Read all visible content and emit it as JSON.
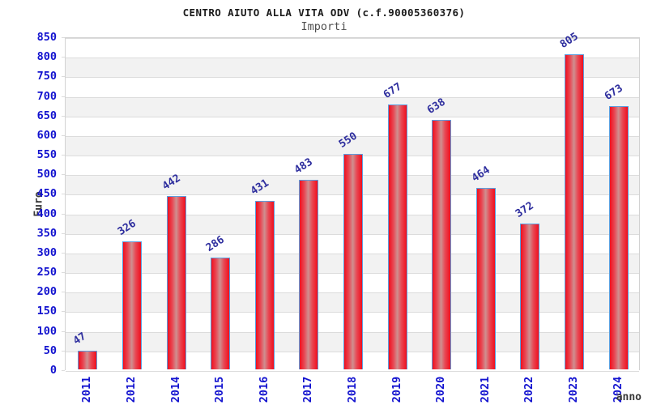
{
  "chart_data": {
    "type": "bar",
    "title": "CENTRO AIUTO ALLA VITA ODV (c.f.90005360376)",
    "subtitle": "Importi",
    "xlabel": "anno",
    "ylabel": "Euro",
    "categories": [
      "2011",
      "2012",
      "2014",
      "2015",
      "2016",
      "2017",
      "2018",
      "2019",
      "2020",
      "2021",
      "2022",
      "2023",
      "2024"
    ],
    "values": [
      47,
      326,
      442,
      286,
      431,
      483,
      550,
      677,
      638,
      464,
      372,
      805,
      673
    ],
    "ylim": [
      0,
      850
    ],
    "ytick_step": 50,
    "yticks": [
      0,
      50,
      100,
      150,
      200,
      250,
      300,
      350,
      400,
      450,
      500,
      550,
      600,
      650,
      700,
      750,
      800,
      850
    ],
    "grid": true,
    "legend": false,
    "colors": {
      "bar_edge": "#f00f1e",
      "bar_mid": "#e84854",
      "bar_center": "#cf9090",
      "bar_border": "#5b9fe0",
      "tick_label": "#1212cf",
      "value_label": "#2e2e9e",
      "axis_label": "#3a3a3a",
      "band_alt": "#f2f2f2",
      "band_main": "#ffffff",
      "gridline": "#dcdcdc",
      "title": "#1a1a1a",
      "subtitle": "#4f4f4f"
    }
  }
}
